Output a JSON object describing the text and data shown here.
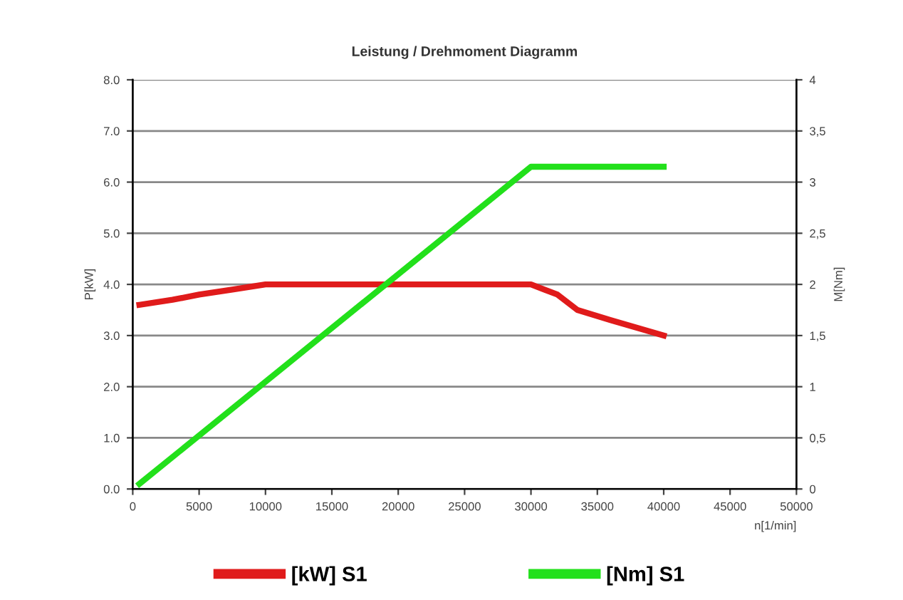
{
  "chart_data": {
    "type": "line",
    "title": "Leistung / Drehmoment Diagramm",
    "xlabel": "n[1/min]",
    "ylabel": "P[kW]",
    "y2label": "M[Nm]",
    "grid": "y",
    "legend": "bottom",
    "marker": "none",
    "line_style": "solid",
    "xlim": [
      0,
      50000
    ],
    "xticks": [
      0,
      5000,
      10000,
      15000,
      20000,
      25000,
      30000,
      35000,
      40000,
      45000,
      50000
    ],
    "ylim": [
      0,
      8
    ],
    "yticks": [
      {
        "value": 0,
        "label": "0.0"
      },
      {
        "value": 1,
        "label": "1.0"
      },
      {
        "value": 2,
        "label": "2.0"
      },
      {
        "value": 3,
        "label": "3.0"
      },
      {
        "value": 4,
        "label": "4.0"
      },
      {
        "value": 5,
        "label": "5.0"
      },
      {
        "value": 6,
        "label": "6.0"
      },
      {
        "value": 7,
        "label": "7.0"
      },
      {
        "value": 8,
        "label": "8.0"
      }
    ],
    "y2lim": [
      0,
      4
    ],
    "y2ticks": [
      0,
      {
        "value": 0.5,
        "label": "0,5"
      },
      1,
      {
        "value": 1.5,
        "label": "1,5"
      },
      2,
      {
        "value": 2.5,
        "label": "2,5"
      },
      3,
      {
        "value": 3.5,
        "label": "3,5"
      },
      4
    ],
    "series": [
      {
        "name": "[kW] S1",
        "color": "#e01b1b",
        "x": [
          500,
          3000,
          5000,
          7500,
          10000,
          20000,
          30000,
          32000,
          33500,
          36000,
          40000
        ],
        "values": [
          3.6,
          3.7,
          3.8,
          3.9,
          4.0,
          4.0,
          4.0,
          3.8,
          3.5,
          3.3,
          3.0
        ]
      },
      {
        "name": "[Nm] S1",
        "color": "#22e01b",
        "axis": "y2",
        "x": [
          500,
          30000,
          40000
        ],
        "values": [
          0.05,
          3.15,
          3.15
        ]
      }
    ]
  }
}
